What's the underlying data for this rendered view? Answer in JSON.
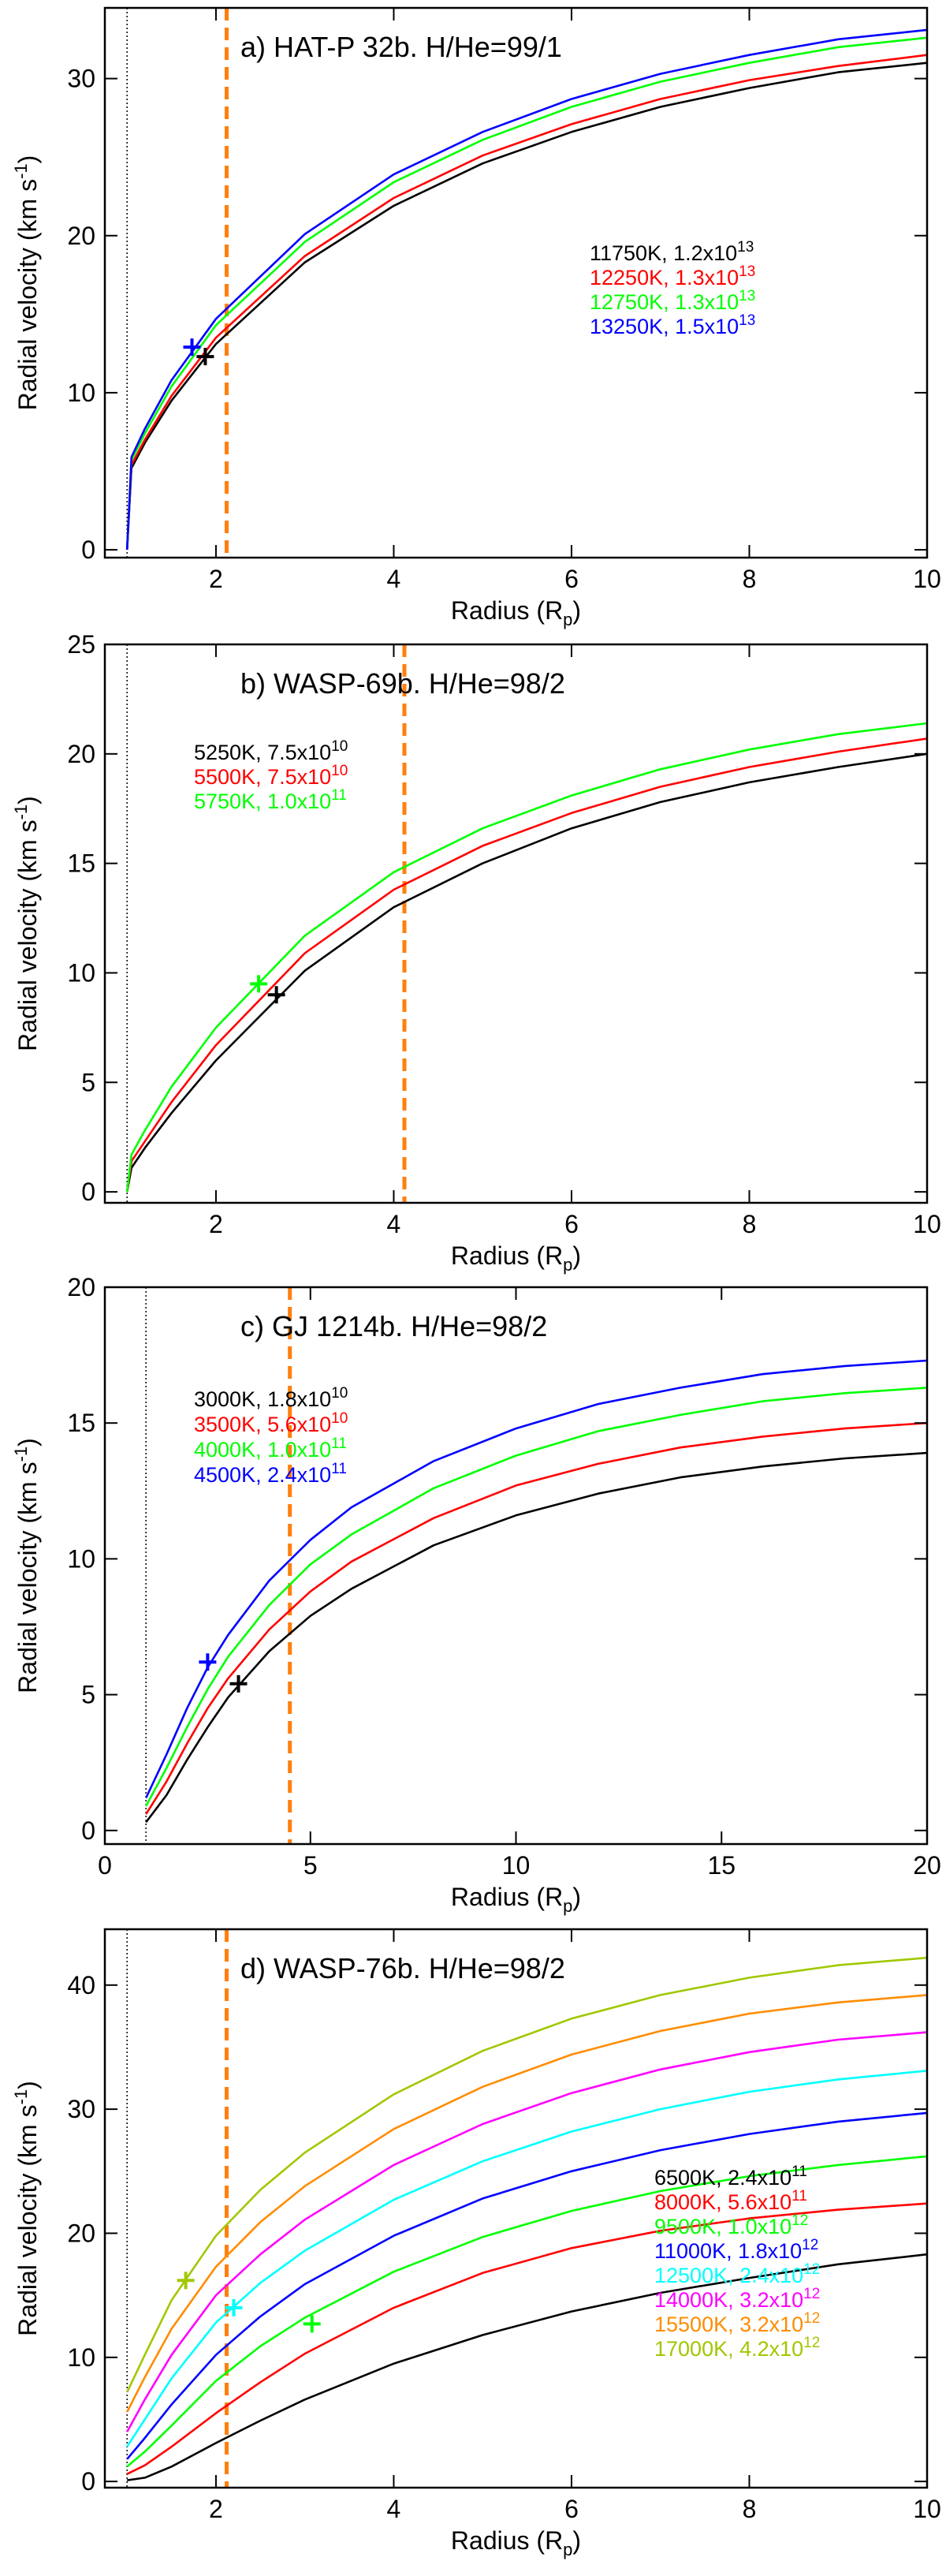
{
  "chart_data": [
    {
      "type": "line",
      "title": "a) HAT-P 32b. H/He=99/1",
      "xlabel": "Radius (R",
      "xlabel_sub": "p",
      "xlabel_tail": ")",
      "ylabel": "Radial velocity (km s",
      "ylabel_sup": "-1",
      "ylabel_tail": ")",
      "xlim": [
        0.75,
        10
      ],
      "ylim": [
        -0.5,
        34.5
      ],
      "xticks": [
        2,
        4,
        6,
        8,
        10
      ],
      "xtick_labels": [
        "2",
        "4",
        "6",
        "8",
        "10"
      ],
      "yticks": [
        0,
        10,
        20,
        30
      ],
      "ytick_labels": [
        "0",
        "10",
        "20",
        "30"
      ],
      "dotted_x": 1.0,
      "sonic_line_x": 2.12,
      "legend_position": "right",
      "series": [
        {
          "name": "11750K",
          "density_mantissa": "1.2",
          "density_exp": "13",
          "color": "#000000",
          "x": [
            1.0,
            1.05,
            1.2,
            1.5,
            2,
            3,
            4,
            5,
            6,
            7,
            8,
            9,
            10
          ],
          "values": [
            0,
            5.2,
            6.8,
            9.5,
            13.1,
            18.3,
            21.9,
            24.6,
            26.6,
            28.2,
            29.4,
            30.4,
            31.0
          ]
        },
        {
          "name": "12250K",
          "density_mantissa": "1.3",
          "density_exp": "13",
          "color": "#ff0000",
          "x": [
            1.0,
            1.05,
            1.2,
            1.5,
            2,
            3,
            4,
            5,
            6,
            7,
            8,
            9,
            10
          ],
          "values": [
            0,
            5.4,
            7.0,
            9.8,
            13.5,
            18.7,
            22.4,
            25.1,
            27.1,
            28.7,
            29.9,
            30.8,
            31.5
          ]
        },
        {
          "name": "12750K",
          "density_mantissa": "1.3",
          "density_exp": "13",
          "color": "#00ff00",
          "x": [
            1.0,
            1.05,
            1.2,
            1.5,
            2,
            3,
            4,
            5,
            6,
            7,
            8,
            9,
            10
          ],
          "values": [
            0,
            5.7,
            7.4,
            10.4,
            14.3,
            19.6,
            23.4,
            26.1,
            28.2,
            29.8,
            31.0,
            32.0,
            32.6
          ]
        },
        {
          "name": "13250K",
          "density_mantissa": "1.5",
          "density_exp": "13",
          "color": "#0000ff",
          "x": [
            1.0,
            1.05,
            1.2,
            1.5,
            2,
            3,
            4,
            5,
            6,
            7,
            8,
            9,
            10
          ],
          "values": [
            0,
            5.9,
            7.7,
            10.8,
            14.7,
            20.1,
            23.9,
            26.6,
            28.7,
            30.3,
            31.5,
            32.5,
            33.1
          ]
        }
      ],
      "sonic_points": [
        {
          "x": 1.88,
          "y": 12.3,
          "color": "#000000"
        },
        {
          "x": 1.73,
          "y": 12.9,
          "color": "#0000ff"
        }
      ]
    },
    {
      "type": "line",
      "title": "b) WASP-69b. H/He=98/2",
      "xlabel": "Radius (R",
      "xlabel_sub": "p",
      "xlabel_tail": ")",
      "ylabel": "Radial velocity (km s",
      "ylabel_sup": "-1",
      "ylabel_tail": ")",
      "xlim": [
        0.75,
        10
      ],
      "ylim": [
        -0.5,
        25
      ],
      "xticks": [
        2,
        4,
        6,
        8,
        10
      ],
      "xtick_labels": [
        "2",
        "4",
        "6",
        "8",
        "10"
      ],
      "yticks": [
        0,
        5,
        10,
        15,
        20,
        25
      ],
      "ytick_labels": [
        "0",
        "5",
        "10",
        "15",
        "20",
        "25"
      ],
      "dotted_x": 1.0,
      "sonic_line_x": 4.12,
      "legend_position": "top-left",
      "series": [
        {
          "name": "5250K",
          "density_mantissa": "7.5",
          "density_exp": "10",
          "color": "#000000",
          "x": [
            1.0,
            1.05,
            1.2,
            1.5,
            2,
            3,
            4,
            5,
            6,
            7,
            8,
            9,
            10
          ],
          "values": [
            0,
            1.1,
            2.0,
            3.6,
            6.0,
            10.1,
            13.0,
            15.0,
            16.6,
            17.8,
            18.7,
            19.4,
            20.0
          ]
        },
        {
          "name": "5500K",
          "density_mantissa": "7.5",
          "density_exp": "10",
          "color": "#ff0000",
          "x": [
            1.0,
            1.05,
            1.2,
            1.5,
            2,
            3,
            4,
            5,
            6,
            7,
            8,
            9,
            10
          ],
          "values": [
            0,
            1.4,
            2.3,
            4.1,
            6.7,
            10.9,
            13.8,
            15.8,
            17.3,
            18.5,
            19.4,
            20.1,
            20.7
          ]
        },
        {
          "name": "5750K",
          "density_mantissa": "1.0",
          "density_exp": "11",
          "color": "#00ff00",
          "x": [
            1.0,
            1.05,
            1.2,
            1.5,
            2,
            3,
            4,
            5,
            6,
            7,
            8,
            9,
            10
          ],
          "values": [
            0,
            1.7,
            2.8,
            4.8,
            7.5,
            11.7,
            14.6,
            16.6,
            18.1,
            19.3,
            20.2,
            20.9,
            21.4
          ]
        }
      ],
      "sonic_points": [
        {
          "x": 2.68,
          "y": 9.0,
          "color": "#000000"
        },
        {
          "x": 2.48,
          "y": 9.5,
          "color": "#00ff00"
        }
      ]
    },
    {
      "type": "line",
      "title": "c) GJ 1214b. H/He=98/2",
      "xlabel": "Radius (R",
      "xlabel_sub": "p",
      "xlabel_tail": ")",
      "ylabel": "Radial velocity (km s",
      "ylabel_sup": "-1",
      "ylabel_tail": ")",
      "xlim": [
        0,
        20
      ],
      "ylim": [
        -0.5,
        20
      ],
      "xticks": [
        0,
        5,
        10,
        15,
        20
      ],
      "xtick_labels": [
        "0",
        "5",
        "10",
        "15",
        "20"
      ],
      "yticks": [
        0,
        5,
        10,
        15,
        20
      ],
      "ytick_labels": [
        "0",
        "5",
        "10",
        "15",
        "20"
      ],
      "dotted_x": 1.0,
      "sonic_line_x": 4.5,
      "legend_position": "top-left",
      "series": [
        {
          "name": "3000K",
          "density_mantissa": "1.8",
          "density_exp": "10",
          "color": "#000000",
          "x": [
            1,
            1.5,
            2,
            2.5,
            3,
            4,
            5,
            6,
            8,
            10,
            12,
            14,
            16,
            18,
            20
          ],
          "values": [
            0.3,
            1.3,
            2.6,
            3.8,
            4.9,
            6.6,
            7.9,
            8.9,
            10.5,
            11.6,
            12.4,
            13.0,
            13.4,
            13.7,
            13.9
          ]
        },
        {
          "name": "3500K",
          "density_mantissa": "5.6",
          "density_exp": "10",
          "color": "#ff0000",
          "x": [
            1,
            1.5,
            2,
            2.5,
            3,
            4,
            5,
            6,
            8,
            10,
            12,
            14,
            16,
            18,
            20
          ],
          "values": [
            0.6,
            1.8,
            3.2,
            4.5,
            5.6,
            7.4,
            8.8,
            9.9,
            11.5,
            12.7,
            13.5,
            14.1,
            14.5,
            14.8,
            15.0
          ]
        },
        {
          "name": "4000K",
          "density_mantissa": "1.0",
          "density_exp": "11",
          "color": "#00ff00",
          "x": [
            1,
            1.5,
            2,
            2.5,
            3,
            4,
            5,
            6,
            8,
            10,
            12,
            14,
            16,
            18,
            20
          ],
          "values": [
            0.9,
            2.3,
            3.8,
            5.2,
            6.4,
            8.3,
            9.8,
            10.9,
            12.6,
            13.8,
            14.7,
            15.3,
            15.8,
            16.1,
            16.3
          ]
        },
        {
          "name": "4500K",
          "density_mantissa": "2.4",
          "density_exp": "11",
          "color": "#0000ff",
          "x": [
            1,
            1.5,
            2,
            2.5,
            3,
            4,
            5,
            6,
            8,
            10,
            12,
            14,
            16,
            18,
            20
          ],
          "values": [
            1.2,
            2.8,
            4.5,
            6.0,
            7.2,
            9.2,
            10.7,
            11.9,
            13.6,
            14.8,
            15.7,
            16.3,
            16.8,
            17.1,
            17.3
          ]
        }
      ],
      "sonic_points": [
        {
          "x": 3.25,
          "y": 5.4,
          "color": "#000000"
        },
        {
          "x": 2.5,
          "y": 6.2,
          "color": "#0000ff"
        }
      ]
    },
    {
      "type": "line",
      "title": "d) WASP-76b. H/He=98/2",
      "xlabel": "Radius (R",
      "xlabel_sub": "p",
      "xlabel_tail": ")",
      "ylabel": "Radial velocity (km s",
      "ylabel_sup": "-1",
      "ylabel_tail": ")",
      "xlim": [
        0.75,
        10
      ],
      "ylim": [
        -0.5,
        44.5
      ],
      "xticks": [
        2,
        4,
        6,
        8,
        10
      ],
      "xtick_labels": [
        "2",
        "4",
        "6",
        "8",
        "10"
      ],
      "yticks": [
        0,
        10,
        20,
        30,
        40
      ],
      "ytick_labels": [
        "0",
        "10",
        "20",
        "30",
        "40"
      ],
      "dotted_x": 1.0,
      "sonic_line_x": 2.12,
      "legend_position": "right",
      "series": [
        {
          "name": "6500K",
          "density_mantissa": "2.4",
          "density_exp": "11",
          "color": "#000000",
          "x": [
            1.0,
            1.2,
            1.5,
            2,
            2.5,
            3,
            4,
            5,
            6,
            7,
            8,
            9,
            10
          ],
          "values": [
            0.1,
            0.3,
            1.2,
            3.1,
            4.9,
            6.6,
            9.5,
            11.8,
            13.7,
            15.2,
            16.4,
            17.5,
            18.3
          ]
        },
        {
          "name": "8000K",
          "density_mantissa": "5.6",
          "density_exp": "11",
          "color": "#ff0000",
          "x": [
            1.0,
            1.2,
            1.5,
            2,
            2.5,
            3,
            4,
            5,
            6,
            7,
            8,
            9,
            10
          ],
          "values": [
            0.6,
            1.3,
            2.8,
            5.5,
            8.0,
            10.3,
            14.0,
            16.8,
            18.8,
            20.2,
            21.2,
            21.9,
            22.4
          ]
        },
        {
          "name": "9500K",
          "density_mantissa": "1.0",
          "density_exp": "12",
          "color": "#00ff00",
          "x": [
            1.0,
            1.2,
            1.5,
            2,
            2.5,
            3,
            4,
            5,
            6,
            7,
            8,
            9,
            10
          ],
          "values": [
            1.2,
            2.4,
            4.5,
            8.1,
            10.9,
            13.2,
            16.9,
            19.7,
            21.8,
            23.4,
            24.6,
            25.5,
            26.2
          ]
        },
        {
          "name": "11000K",
          "density_mantissa": "1.8",
          "density_exp": "12",
          "color": "#0000ff",
          "x": [
            1.0,
            1.2,
            1.5,
            2,
            2.5,
            3,
            4,
            5,
            6,
            7,
            8,
            9,
            10
          ],
          "values": [
            1.8,
            3.5,
            6.2,
            10.2,
            13.3,
            15.9,
            19.8,
            22.8,
            25.0,
            26.7,
            28.0,
            29.0,
            29.7
          ]
        },
        {
          "name": "12500K",
          "density_mantissa": "2.4",
          "density_exp": "12",
          "color": "#00ffff",
          "x": [
            1.0,
            1.2,
            1.5,
            2,
            2.5,
            3,
            4,
            5,
            6,
            7,
            8,
            9,
            10
          ],
          "values": [
            2.8,
            5.0,
            8.3,
            12.8,
            16.0,
            18.6,
            22.7,
            25.8,
            28.2,
            30.0,
            31.4,
            32.4,
            33.1
          ]
        },
        {
          "name": "14000K",
          "density_mantissa": "3.2",
          "density_exp": "12",
          "color": "#ff00ff",
          "x": [
            1.0,
            1.2,
            1.5,
            2,
            2.5,
            3,
            4,
            5,
            6,
            7,
            8,
            9,
            10
          ],
          "values": [
            4.0,
            6.6,
            10.2,
            15.0,
            18.3,
            21.1,
            25.5,
            28.8,
            31.3,
            33.2,
            34.6,
            35.6,
            36.2
          ]
        },
        {
          "name": "15500K",
          "density_mantissa": "3.2",
          "density_exp": "12",
          "color": "#ff8c00",
          "x": [
            1.0,
            1.2,
            1.5,
            2,
            2.5,
            3,
            4,
            5,
            6,
            7,
            8,
            9,
            10
          ],
          "values": [
            5.6,
            8.4,
            12.3,
            17.3,
            20.9,
            23.8,
            28.4,
            31.8,
            34.4,
            36.3,
            37.7,
            38.6,
            39.2
          ]
        },
        {
          "name": "17000K",
          "density_mantissa": "4.2",
          "density_exp": "12",
          "color": "#a0c800",
          "x": [
            1.0,
            1.2,
            1.5,
            2,
            2.5,
            3,
            4,
            5,
            6,
            7,
            8,
            9,
            10
          ],
          "values": [
            7.2,
            10.2,
            14.6,
            19.8,
            23.5,
            26.5,
            31.2,
            34.7,
            37.3,
            39.2,
            40.6,
            41.6,
            42.2
          ]
        }
      ],
      "sonic_points": [
        {
          "x": 1.66,
          "y": 16.2,
          "color": "#a0c800"
        },
        {
          "x": 2.2,
          "y": 14.0,
          "color": "#00ffff"
        },
        {
          "x": 3.08,
          "y": 12.7,
          "color": "#00ff00"
        }
      ]
    }
  ]
}
